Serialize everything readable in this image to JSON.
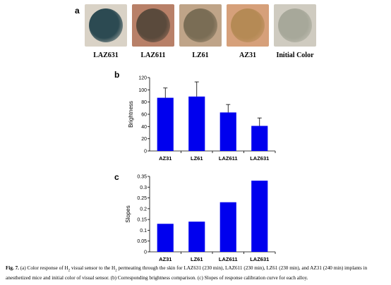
{
  "figure": {
    "panel_a": {
      "letter": "a",
      "photos": [
        {
          "label": "LAZ631",
          "bg": "#d9d2c6",
          "disc": "#2c4a52"
        },
        {
          "label": "LAZ611",
          "bg": "#b88068",
          "disc": "#5a4a3c"
        },
        {
          "label": "LZ61",
          "bg": "#bfa488",
          "disc": "#7a6d55"
        },
        {
          "label": "AZ31",
          "bg": "#d6a07a",
          "disc": "#b58a55"
        },
        {
          "label": "Initial Color",
          "bg": "#cfcbc0",
          "disc": "#a7a89a"
        }
      ]
    },
    "panel_b_letter": "b",
    "panel_c_letter": "c",
    "caption": {
      "label": "Fig. 7.",
      "text_1": " (a) Color response of H",
      "sub_1": "2",
      "text_2": " visual sensor to the H",
      "sub_2": "2",
      "text_3": " permeating through the skin for LAZ631 (230 min), LAZ611 (230 min), LZ61 (230 min), and AZ31 (240 min) implants in anesthetized mice and initial color of visual sensor. (b) Corresponding brightness comparison. (c) Slopes of response calibration curve for each alloy."
    }
  },
  "chart_data": [
    {
      "type": "bar",
      "categories": [
        "AZ31",
        "LZ61",
        "LAZ611",
        "LAZ631"
      ],
      "values": [
        87,
        89,
        63,
        41
      ],
      "errors": [
        16,
        24,
        13,
        13
      ],
      "ylabel": "Brightness",
      "ylim": [
        0,
        120
      ],
      "yticks": [
        "0",
        "20",
        "40",
        "60",
        "80",
        "100",
        "120"
      ],
      "color": "#0000ee",
      "grid": false
    },
    {
      "type": "bar",
      "categories": [
        "AZ31",
        "LZ61",
        "LAZ611",
        "LAZ631"
      ],
      "values": [
        0.13,
        0.14,
        0.23,
        0.33
      ],
      "ylabel": "Slopes",
      "ylim": [
        0,
        0.35
      ],
      "yticks": [
        "0",
        "0.05",
        "0.1",
        "0.15",
        "0.2",
        "0.25",
        "0.3",
        "0.35"
      ],
      "color": "#0000ee",
      "grid": false
    }
  ]
}
